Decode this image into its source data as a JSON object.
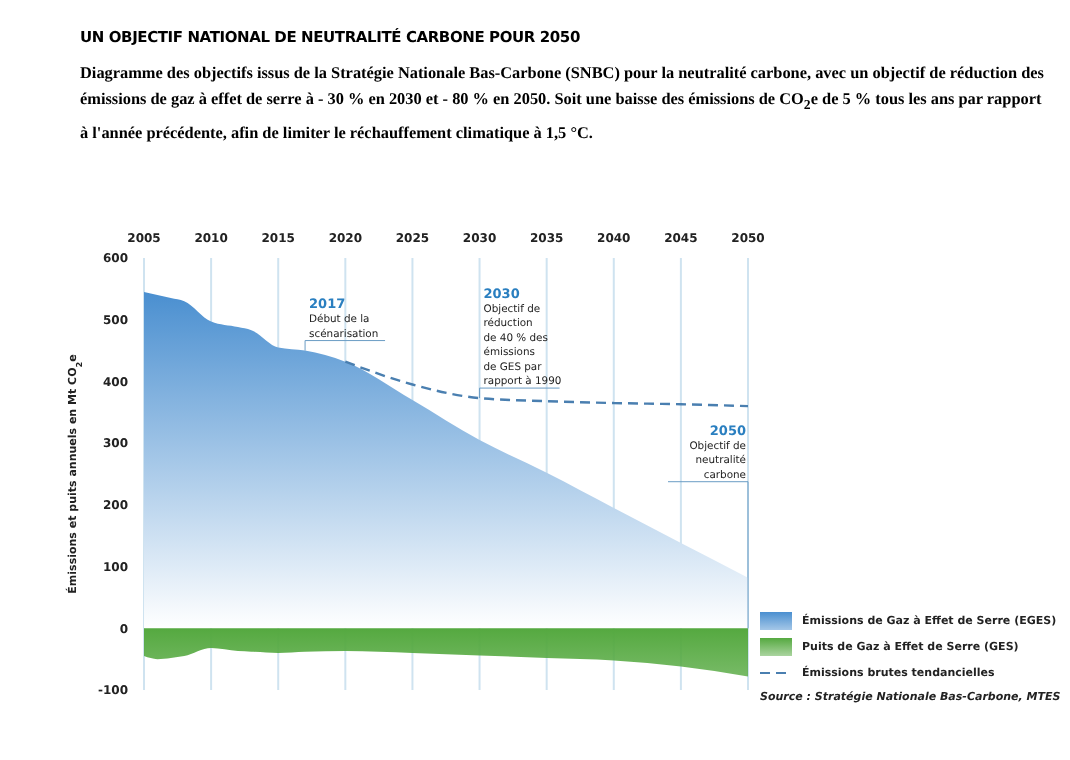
{
  "chart_data": {
    "type": "area",
    "title": "UN OBJECTIF NATIONAL DE NEUTRALITÉ CARBONE POUR 2050",
    "subtitle": "Diagramme des objectifs issus de la Stratégie Nationale Bas-Carbone (SNBC) pour la neutralité carbone, avec un objectif de réduction des émissions de gaz à effet de serre à - 30 % en 2030 et - 80 % en 2050. Soit une baisse des émissions de CO$_{2}$e de 5 % tous les ans par rapport à l'année précédente, afin de limiter le réchauffement climatique à 1,5 °C.",
    "ylabel": "Émissions et puits annuels en Mt CO$_{2}$e",
    "x": [
      2005,
      2006,
      2007,
      2008,
      2010,
      2012,
      2013,
      2015,
      2017,
      2020,
      2025,
      2030,
      2035,
      2040,
      2045,
      2050
    ],
    "series": [
      {
        "name": "Émissions de Gaz à Effet de Serre (EGES)",
        "color": "#4a8fd0",
        "values": [
          545,
          540,
          535,
          530,
          497,
          488,
          483,
          455,
          450,
          432,
          370,
          305,
          252,
          195,
          138,
          82
        ]
      },
      {
        "name": "Puits de Gaz à Effet de Serre (GES)",
        "color": "#55a940",
        "values": [
          -45,
          -50,
          -48,
          -45,
          -32,
          -37,
          -38,
          -40,
          -38,
          -37,
          -40,
          -44,
          -48,
          -52,
          -62,
          -78
        ]
      },
      {
        "name": "Émissions brutes tendancielles",
        "type": "line",
        "line_style": "dashed",
        "color": "#4a7fb0",
        "values": [
          null,
          null,
          null,
          null,
          null,
          null,
          null,
          null,
          null,
          432,
          395,
          373,
          368,
          365,
          363,
          360
        ]
      }
    ],
    "xlim": [
      2005,
      2050
    ],
    "xticks": [
      2005,
      2010,
      2015,
      2020,
      2025,
      2030,
      2035,
      2040,
      2045,
      2050
    ],
    "ylim": [
      -100,
      600
    ],
    "yticks": [
      -100,
      0,
      100,
      200,
      300,
      400,
      500,
      600
    ],
    "grid": "x",
    "legend": "bottom right",
    "annotations": [
      {
        "text": "2017\nDébut de la\nscénarisation",
        "x": 2017,
        "y": 450
      },
      {
        "text": "2030\nObjectif de\nréduction\nde 40 % des\némissions\nde GES par\nrapport à 1990",
        "x": 2030,
        "y": 373
      },
      {
        "text": "2050\nObjectif de\nneutralité\ncarbone",
        "x": 2050,
        "y": 360
      },
      "Source : Stratégie Nationale Bas-Carbone, MTES"
    ]
  }
}
